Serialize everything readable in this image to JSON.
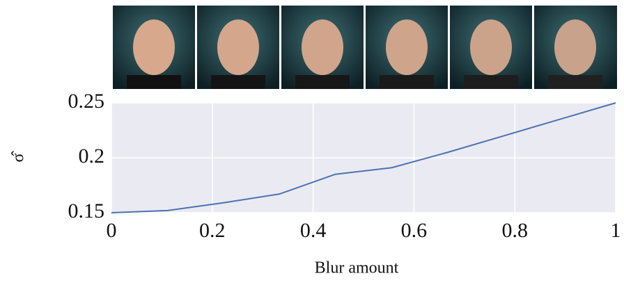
{
  "chart_data": {
    "type": "line",
    "xlabel": "Blur amount",
    "ylabel": "σ̂",
    "x": [
      0,
      0.111,
      0.222,
      0.333,
      0.444,
      0.556,
      0.667,
      0.778,
      0.889,
      1
    ],
    "series": [
      {
        "color": "#4c72b0",
        "values": [
          0.15,
          0.152,
          0.159,
          0.167,
          0.185,
          0.191,
          0.205,
          0.22,
          0.235,
          0.25
        ]
      }
    ],
    "xlim": [
      0,
      1
    ],
    "xticks": [
      0,
      0.2,
      0.4,
      0.6,
      0.8,
      1
    ],
    "ylim": [
      0.15,
      0.25
    ],
    "yticks": [
      0.15,
      0.2,
      0.25
    ],
    "grid": true
  }
}
